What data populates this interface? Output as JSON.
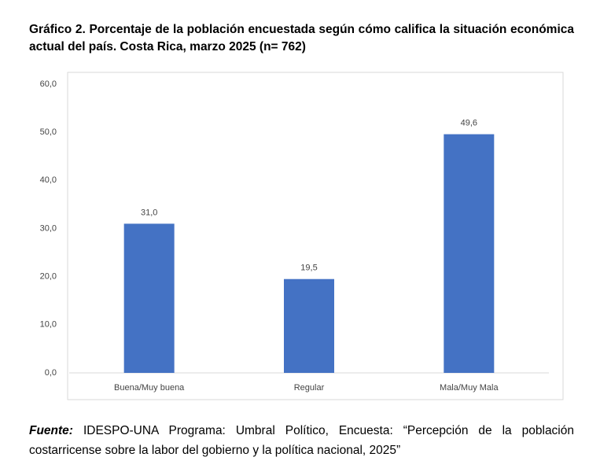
{
  "chart_data": {
    "type": "bar",
    "title": "Gráfico 2. Porcentaje de la población encuestada según cómo califica la situación económica actual del país. Costa Rica, marzo 2025 (n= 762)",
    "categories": [
      "Buena/Muy buena",
      "Regular",
      "Mala/Muy Mala"
    ],
    "values": [
      31.0,
      19.5,
      49.6
    ],
    "value_labels": [
      "31,0",
      "19,5",
      "49,6"
    ],
    "color": "#4472c4",
    "ylim": [
      0,
      60
    ],
    "yticks": [
      {
        "value": 0,
        "label": "0,0"
      },
      {
        "value": 10,
        "label": "10,0"
      },
      {
        "value": 20,
        "label": "20,0"
      },
      {
        "value": 30,
        "label": "30,0"
      },
      {
        "value": 40,
        "label": "40,0"
      },
      {
        "value": 50,
        "label": "50,0"
      },
      {
        "value": 60,
        "label": "60,0"
      }
    ],
    "grid": false,
    "source_label": "Fuente:",
    "source": "IDESPO-UNA Programa: Umbral Político, Encuesta: “Percepción de la población costarricense sobre la labor del gobierno y la política nacional, 2025”"
  }
}
